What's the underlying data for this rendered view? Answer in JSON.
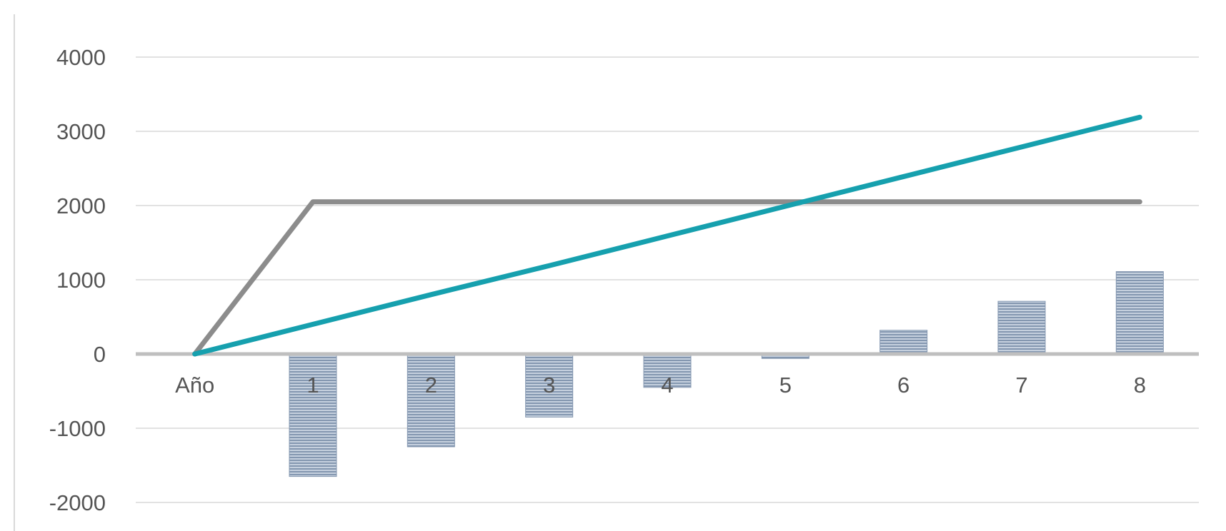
{
  "chart_data": {
    "type": "bar",
    "categories": [
      "Año",
      "1",
      "2",
      "3",
      "4",
      "5",
      "6",
      "7",
      "8"
    ],
    "ylim": [
      -2000,
      4000
    ],
    "yticks": [
      4000,
      3000,
      2000,
      1000,
      0,
      -1000,
      -2000
    ],
    "grid": true,
    "series": [
      {
        "kind": "bar",
        "color": "#8497b0",
        "values": [
          0,
          -1650,
          -1250,
          -850,
          -450,
          -60,
          320,
          710,
          1110
        ]
      },
      {
        "kind": "line",
        "color": "#8c8c8c",
        "values": [
          0,
          2050,
          2050,
          2050,
          2050,
          2050,
          2050,
          2050,
          2050
        ]
      },
      {
        "kind": "line",
        "color": "#16a0ae",
        "values": [
          0,
          400,
          800,
          1190,
          1590,
          1990,
          2390,
          2790,
          3190
        ]
      }
    ],
    "colors": {
      "grid": "#d9d9d9",
      "zero_axis": "#bfbfbf",
      "tick_text": "#555555",
      "left_border": "#d9d9d9"
    }
  }
}
